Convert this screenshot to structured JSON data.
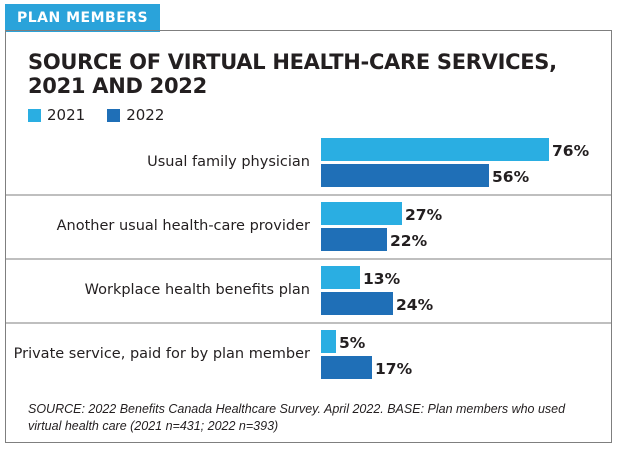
{
  "header": {
    "tab_label": "PLAN MEMBERS"
  },
  "chart_data": {
    "type": "bar",
    "orientation": "horizontal",
    "title": "SOURCE OF VIRTUAL HEALTH-CARE SERVICES, 2021 AND 2022",
    "categories": [
      "Usual family physician",
      "Another usual health-care provider",
      "Workplace health benefits plan",
      "Private service, paid for by plan member"
    ],
    "series": [
      {
        "name": "2021",
        "values": [
          76,
          27,
          13,
          5
        ],
        "color": "#2aaee2"
      },
      {
        "name": "2022",
        "values": [
          56,
          22,
          24,
          17
        ],
        "color": "#1f6fb7"
      }
    ],
    "value_format": "%",
    "legend": "top-left",
    "grid": false
  },
  "footer": {
    "source": "SOURCE: 2022 Benefits Canada Healthcare Survey. April 2022. BASE: Plan members who used virtual health care (2021 n=431; 2022 n=393)"
  }
}
